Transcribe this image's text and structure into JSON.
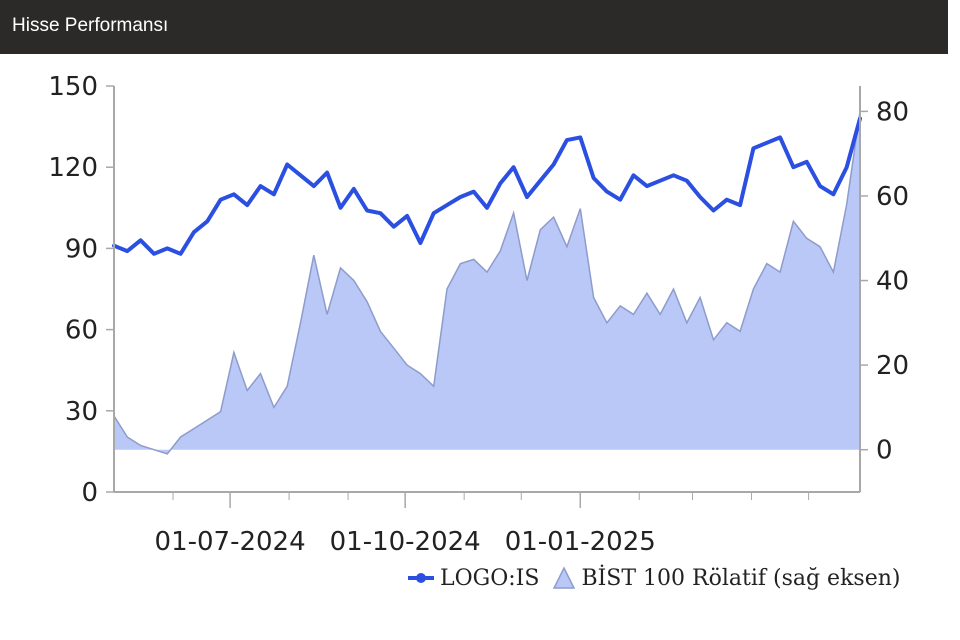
{
  "header": {
    "title": "Hisse Performansı"
  },
  "colors": {
    "line": "#2b4fe0",
    "area_fill": "#b9c8f6",
    "area_stroke": "#8e9ccc",
    "header_bg": "#2b2a29"
  },
  "chart_data": {
    "type": "line",
    "x_ticks": [
      "01-07-2024",
      "01-10-2024",
      "01-01-2025"
    ],
    "y_left": {
      "ticks": [
        0,
        30,
        60,
        90,
        120,
        150
      ],
      "range": [
        0,
        150
      ]
    },
    "y_right": {
      "ticks": [
        0,
        20,
        40,
        60,
        80
      ],
      "range": [
        -10,
        86
      ]
    },
    "series": [
      {
        "name": "LOGO:IS",
        "axis": "left",
        "x": [
          "2024-05-01",
          "2024-05-08",
          "2024-05-15",
          "2024-05-22",
          "2024-05-29",
          "2024-06-05",
          "2024-06-12",
          "2024-06-19",
          "2024-06-26",
          "2024-07-03",
          "2024-07-10",
          "2024-07-17",
          "2024-07-24",
          "2024-07-31",
          "2024-08-07",
          "2024-08-14",
          "2024-08-21",
          "2024-08-28",
          "2024-09-04",
          "2024-09-11",
          "2024-09-18",
          "2024-09-25",
          "2024-10-02",
          "2024-10-09",
          "2024-10-16",
          "2024-10-23",
          "2024-10-30",
          "2024-11-06",
          "2024-11-13",
          "2024-11-20",
          "2024-11-27",
          "2024-12-04",
          "2024-12-11",
          "2024-12-18",
          "2024-12-25",
          "2025-01-01",
          "2025-01-08",
          "2025-01-15",
          "2025-01-22",
          "2025-01-29",
          "2025-02-05",
          "2025-02-12",
          "2025-02-19",
          "2025-02-26",
          "2025-03-05",
          "2025-03-12",
          "2025-03-19",
          "2025-03-26",
          "2025-04-02",
          "2025-04-09",
          "2025-04-16",
          "2025-04-23",
          "2025-04-30",
          "2025-05-07",
          "2025-05-14",
          "2025-05-21",
          "2025-05-28"
        ],
        "values": [
          91,
          89,
          93,
          88,
          90,
          88,
          96,
          100,
          108,
          110,
          106,
          113,
          110,
          121,
          117,
          113,
          118,
          105,
          112,
          104,
          103,
          98,
          102,
          92,
          103,
          106,
          109,
          111,
          105,
          114,
          120,
          109,
          115,
          121,
          130,
          131,
          116,
          111,
          108,
          117,
          113,
          115,
          117,
          115,
          109,
          104,
          108,
          106,
          127,
          129,
          131,
          120,
          122,
          113,
          110,
          120,
          138
        ]
      },
      {
        "name": "BİST 100 Rölatif (sağ eksen)",
        "axis": "right",
        "x": [
          "2024-05-01",
          "2024-05-08",
          "2024-05-15",
          "2024-05-22",
          "2024-05-29",
          "2024-06-05",
          "2024-06-12",
          "2024-06-19",
          "2024-06-26",
          "2024-07-03",
          "2024-07-10",
          "2024-07-17",
          "2024-07-24",
          "2024-07-31",
          "2024-08-07",
          "2024-08-14",
          "2024-08-21",
          "2024-08-28",
          "2024-09-04",
          "2024-09-11",
          "2024-09-18",
          "2024-09-25",
          "2024-10-02",
          "2024-10-09",
          "2024-10-16",
          "2024-10-23",
          "2024-10-30",
          "2024-11-06",
          "2024-11-13",
          "2024-11-20",
          "2024-11-27",
          "2024-12-04",
          "2024-12-11",
          "2024-12-18",
          "2024-12-25",
          "2025-01-01",
          "2025-01-08",
          "2025-01-15",
          "2025-01-22",
          "2025-01-29",
          "2025-02-05",
          "2025-02-12",
          "2025-02-19",
          "2025-02-26",
          "2025-03-05",
          "2025-03-12",
          "2025-03-19",
          "2025-03-26",
          "2025-04-02",
          "2025-04-09",
          "2025-04-16",
          "2025-04-23",
          "2025-04-30",
          "2025-05-07",
          "2025-05-14",
          "2025-05-21",
          "2025-05-28"
        ],
        "values": [
          8,
          3,
          1,
          0,
          -1,
          3,
          5,
          7,
          9,
          23,
          14,
          18,
          10,
          15,
          30,
          46,
          32,
          43,
          40,
          35,
          28,
          24,
          20,
          18,
          15,
          38,
          44,
          45,
          42,
          47,
          56,
          40,
          52,
          55,
          48,
          57,
          36,
          30,
          34,
          32,
          37,
          32,
          38,
          30,
          36,
          26,
          30,
          28,
          38,
          44,
          42,
          54,
          50,
          48,
          42,
          58,
          80
        ]
      }
    ]
  }
}
